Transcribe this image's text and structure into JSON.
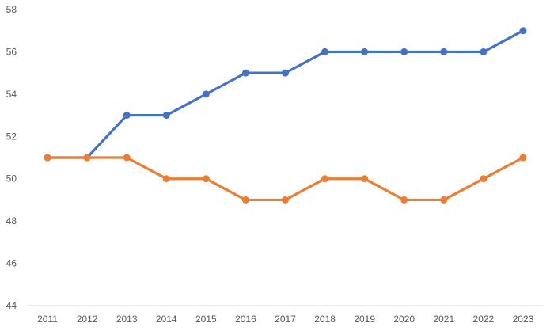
{
  "chart_data": {
    "type": "line",
    "title": "",
    "xlabel": "",
    "ylabel": "",
    "x": [
      "2011",
      "2012",
      "2013",
      "2014",
      "2015",
      "2016",
      "2017",
      "2018",
      "2019",
      "2020",
      "2021",
      "2022",
      "2023"
    ],
    "ylim": [
      44,
      58
    ],
    "yticks": [
      44,
      46,
      48,
      50,
      52,
      54,
      56,
      58
    ],
    "grid": false,
    "legend": "none",
    "series": [
      {
        "color": "#4472C4",
        "values": [
          51,
          51,
          53,
          53,
          54,
          55,
          55,
          56,
          56,
          56,
          56,
          56,
          57
        ]
      },
      {
        "color": "#ED7D31",
        "values": [
          51,
          51,
          51,
          50,
          50,
          49,
          49,
          50,
          50,
          49,
          49,
          50,
          51
        ]
      }
    ]
  }
}
